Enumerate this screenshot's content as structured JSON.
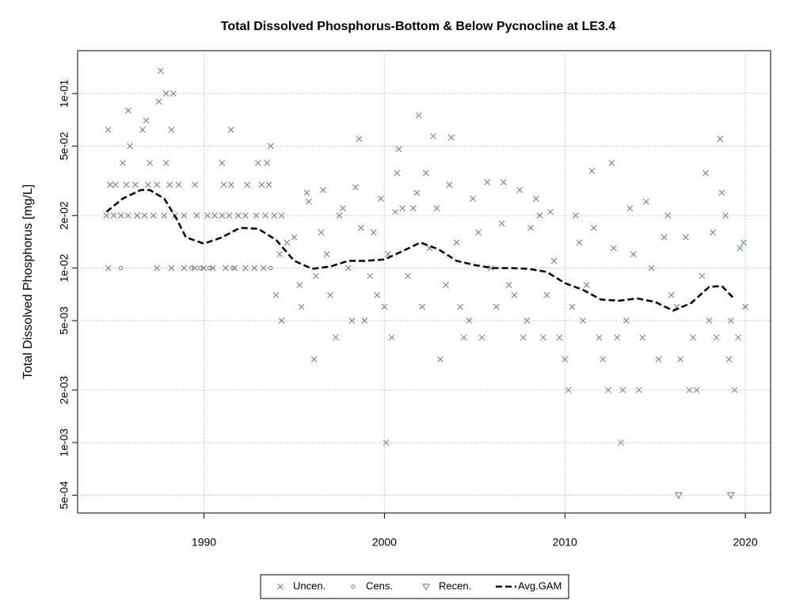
{
  "chart_data": {
    "type": "scatter",
    "title": "Total Dissolved Phosphorus-Bottom & Below Pycnocline at LE3.4",
    "y_label": "Total Dissolved Phosphorus [mg/L]",
    "log_y": true,
    "grid": true,
    "legend_position": "bottom",
    "xlim": [
      1983,
      2021.4
    ],
    "xticks": [
      1990,
      2000,
      2010,
      2020
    ],
    "ylim": [
      0.000395,
      0.176
    ],
    "yticks": [
      {
        "value": 0.1,
        "label": "1e-01"
      },
      {
        "value": 0.05,
        "label": "5e-02"
      },
      {
        "value": 0.02,
        "label": "2e-02"
      },
      {
        "value": 0.01,
        "label": "1e-02"
      },
      {
        "value": 0.005,
        "label": "5e-03"
      },
      {
        "value": 0.002,
        "label": "2e-03"
      },
      {
        "value": 0.001,
        "label": "1e-03"
      },
      {
        "value": 0.0005,
        "label": "5e-04"
      }
    ],
    "series": [
      {
        "name": "Uncen.",
        "color": "#6b7a8c",
        "mode": "points",
        "marker": "x",
        "x": [
          1984.7,
          1985.8,
          1985.9,
          1985.5,
          1986.6,
          1986.8,
          1987.5,
          1987.6,
          1987.9,
          1988.3,
          1988.2,
          1987.9,
          1987.0,
          1991.5,
          1991.0,
          1993.0,
          1993.5,
          1993.7,
          1984.8,
          1985.1,
          1985.7,
          1986.2,
          1986.9,
          1987.4,
          1988.1,
          1988.6,
          1989.5,
          1991.1,
          1991.5,
          1992.4,
          1993.2,
          1993.6,
          1984.6,
          1985.0,
          1985.4,
          1985.8,
          1986.3,
          1986.7,
          1987.2,
          1987.8,
          1988.4,
          1988.9,
          1989.6,
          1990.2,
          1990.6,
          1991.0,
          1991.4,
          1991.9,
          1992.3,
          1992.9,
          1993.4,
          1993.9,
          1994.3,
          1984.7,
          1987.4,
          1988.2,
          1988.9,
          1989.5,
          1990.0,
          1990.5,
          1991.2,
          1991.7,
          1992.3,
          1992.8,
          1993.3,
          1994,
          1994.3,
          1994.2,
          1994.6,
          1995,
          1995.3,
          1995.4,
          1995.7,
          1995.8,
          1996.1,
          1996.2,
          1996.5,
          1996.6,
          1996.8,
          1997,
          1997.3,
          1997.5,
          1997.7,
          1998,
          1998.2,
          1998.4,
          1998.6,
          1998.7,
          1998.9,
          1999.2,
          1999.4,
          1999.6,
          1999.8,
          2000,
          2000.2,
          2000.4,
          2000.6,
          2000.7,
          2000.8,
          2001,
          2001.3,
          2001.6,
          2001.8,
          2001.9,
          2002.1,
          2002.3,
          2002.5,
          2002.7,
          2002.9,
          2003.1,
          2003.4,
          2003.6,
          2003.7,
          2004,
          2004.2,
          2004.4,
          2004.7,
          2004.9,
          2005.2,
          2005.4,
          2005.7,
          2005.9,
          2006.2,
          2006.5,
          2006.6,
          2006.9,
          2007.2,
          2007.5,
          2007.7,
          2007.9,
          2008.1,
          2008.4,
          2008.6,
          2008.8,
          2009,
          2009.2,
          2009.4,
          2009.7,
          2010,
          2010.2,
          2010.4,
          2010.6,
          2010.8,
          2011,
          2011.2,
          2011.5,
          2011.6,
          2011.9,
          2012.1,
          2012.4,
          2012.6,
          2012.7,
          2012.9,
          2013.1,
          2013.2,
          2013.4,
          2013.6,
          2013.8,
          2014.1,
          2014.3,
          2014.5,
          2014.8,
          2015.2,
          2015.5,
          2015.7,
          2015.9,
          2016.2,
          2016.4,
          2016.7,
          2016.9,
          2017.1,
          2017.3,
          2017.6,
          2017.8,
          2018,
          2018.2,
          2018.4,
          2018.6,
          2018.7,
          2018.9,
          2019.1,
          2019.2,
          2019.4,
          2019.6,
          2019.7,
          2019.9,
          2020,
          2000.1
        ],
        "values": [
          0.062,
          0.08,
          0.05,
          0.04,
          0.062,
          0.07,
          0.09,
          0.135,
          0.1,
          0.1,
          0.062,
          0.04,
          0.04,
          0.062,
          0.04,
          0.04,
          0.04,
          0.05,
          0.03,
          0.03,
          0.03,
          0.03,
          0.03,
          0.03,
          0.03,
          0.03,
          0.03,
          0.03,
          0.03,
          0.03,
          0.03,
          0.03,
          0.02,
          0.02,
          0.02,
          0.02,
          0.02,
          0.02,
          0.02,
          0.02,
          0.02,
          0.02,
          0.02,
          0.02,
          0.02,
          0.02,
          0.02,
          0.02,
          0.02,
          0.02,
          0.02,
          0.02,
          0.02,
          0.01,
          0.01,
          0.01,
          0.01,
          0.01,
          0.01,
          0.01,
          0.01,
          0.01,
          0.01,
          0.01,
          0.01,
          0.007,
          0.005,
          0.012,
          0.014,
          0.015,
          0.008,
          0.006,
          0.027,
          0.024,
          0.003,
          0.009,
          0.016,
          0.028,
          0.012,
          0.007,
          0.004,
          0.02,
          0.022,
          0.01,
          0.005,
          0.029,
          0.055,
          0.017,
          0.005,
          0.009,
          0.016,
          0.007,
          0.025,
          0.006,
          0.012,
          0.004,
          0.021,
          0.035,
          0.048,
          0.022,
          0.009,
          0.022,
          0.027,
          0.075,
          0.006,
          0.035,
          0.013,
          0.057,
          0.022,
          0.003,
          0.008,
          0.03,
          0.056,
          0.014,
          0.006,
          0.004,
          0.005,
          0.025,
          0.016,
          0.004,
          0.031,
          0.01,
          0.006,
          0.018,
          0.031,
          0.008,
          0.007,
          0.028,
          0.004,
          0.005,
          0.017,
          0.025,
          0.02,
          0.004,
          0.007,
          0.021,
          0.011,
          0.004,
          0.003,
          0.002,
          0.006,
          0.02,
          0.014,
          0.005,
          0.008,
          0.036,
          0.017,
          0.004,
          0.003,
          0.002,
          0.04,
          0.013,
          0.004,
          0.001,
          0.002,
          0.005,
          0.022,
          0.012,
          0.002,
          0.004,
          0.024,
          0.01,
          0.003,
          0.015,
          0.02,
          0.007,
          0.006,
          0.003,
          0.015,
          0.002,
          0.004,
          0.002,
          0.009,
          0.035,
          0.005,
          0.016,
          0.004,
          0.055,
          0.027,
          0.02,
          0.003,
          0.005,
          0.002,
          0.004,
          0.013,
          0.014,
          0.006,
          0.001
        ]
      },
      {
        "name": "Cens.",
        "color": "#6b7a8c",
        "mode": "points",
        "marker": "circle",
        "x": [
          1985.4,
          1989.3,
          1989.8,
          1990.3,
          1991.6,
          1993.7
        ],
        "values": [
          0.01,
          0.01,
          0.01,
          0.01,
          0.01,
          0.01
        ]
      },
      {
        "name": "Recen.",
        "color": "#6b7a8c",
        "mode": "points",
        "marker": "triangle",
        "x": [
          2016.3,
          2019.2
        ],
        "values": [
          0.0005,
          0.0005
        ]
      },
      {
        "name": "Avg.GAM",
        "color": "#000000",
        "mode": "line",
        "dashed": true,
        "x": [
          1984.6,
          1985.5,
          1986.5,
          1987,
          1987.8,
          1988.5,
          1989,
          1990,
          1991,
          1992,
          1993,
          1994,
          1995,
          1996,
          1997,
          1998,
          1999,
          2000,
          2001,
          2002,
          2003,
          2004,
          2005,
          2006,
          2007,
          2008,
          2009,
          2010,
          2011,
          2012,
          2013,
          2014,
          2015,
          2016,
          2017,
          2018,
          2018.7,
          2019.3
        ],
        "values": [
          0.021,
          0.025,
          0.028,
          0.028,
          0.025,
          0.019,
          0.015,
          0.0138,
          0.015,
          0.017,
          0.0168,
          0.0145,
          0.011,
          0.0099,
          0.0102,
          0.011,
          0.011,
          0.0112,
          0.0125,
          0.014,
          0.0128,
          0.011,
          0.0104,
          0.01,
          0.01,
          0.0099,
          0.0095,
          0.0082,
          0.0075,
          0.0066,
          0.0065,
          0.0067,
          0.0064,
          0.0057,
          0.0063,
          0.0078,
          0.0079,
          0.0068
        ]
      }
    ]
  }
}
